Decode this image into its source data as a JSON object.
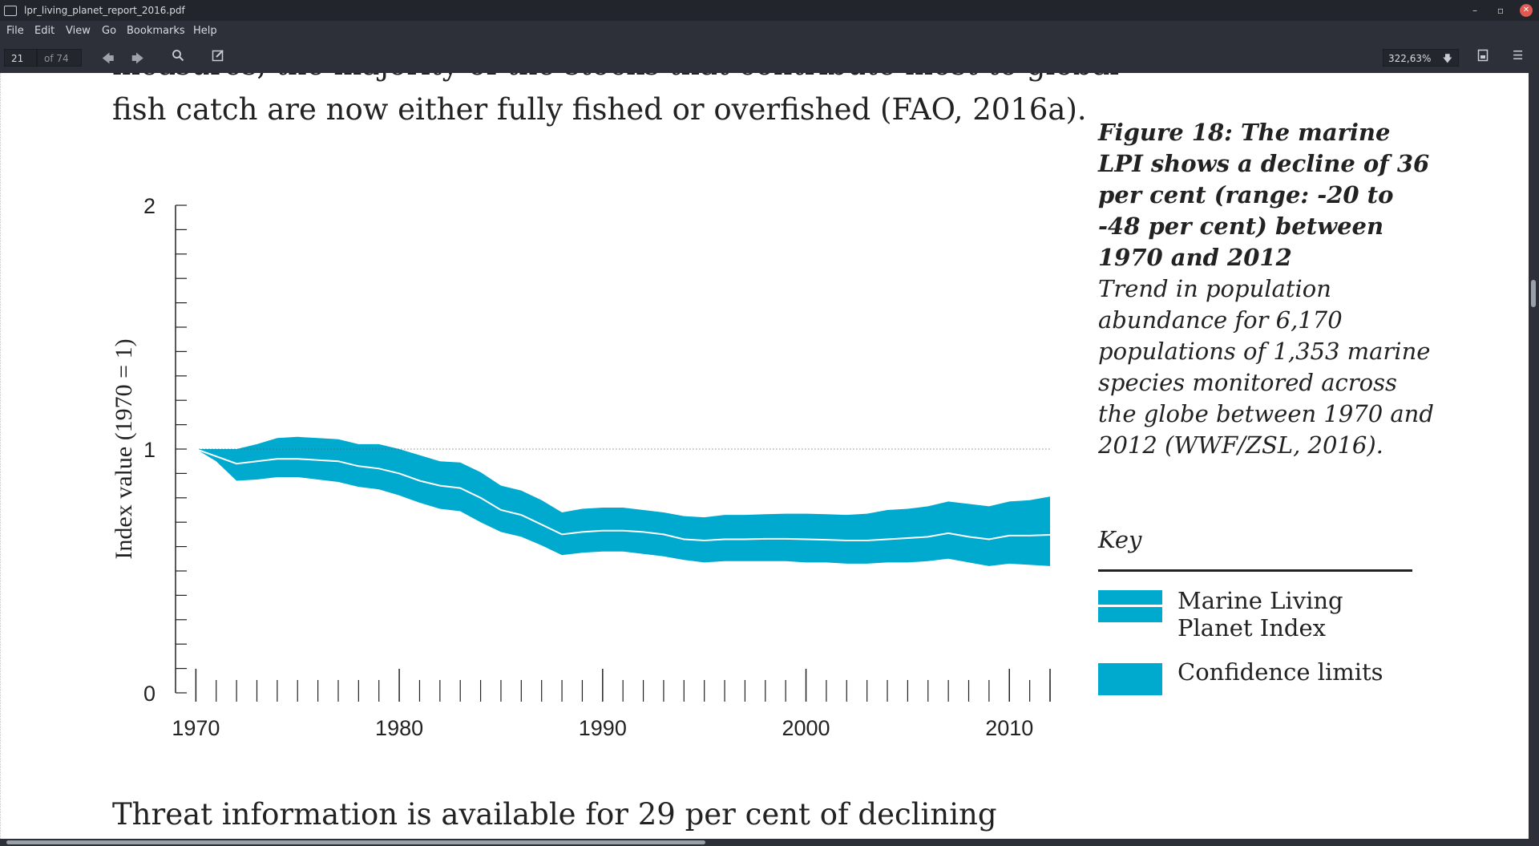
{
  "window": {
    "title": "lpr_living_planet_report_2016.pdf",
    "minimize": "–",
    "restore": "▫",
    "close": "✕"
  },
  "menu": [
    "File",
    "Edit",
    "View",
    "Go",
    "Bookmarks",
    "Help"
  ],
  "toolbar": {
    "page_current": "21",
    "page_total": "of 74",
    "zoom": "322,63%"
  },
  "document": {
    "top_partial_line": "measures, the majority of the stocks that contribute most to global",
    "top_line": "fish catch are now either fully fished or overfished (FAO, 2016a).",
    "bottom_line": "Threat information is available for 29 per cent of declining"
  },
  "caption": {
    "title": "Figure 18: The marine LPI shows a decline of 36 per cent (range: -20 to -48 per cent) between 1970 and 2012",
    "body": "Trend in population abundance for 6,170 populations of 1,353 marine species monitored across the globe between 1970 and 2012 (WWF/ZSL, 2016)."
  },
  "legend": {
    "heading": "Key",
    "items": [
      {
        "label": "Marine Living Planet Index",
        "swatch": "band-with-line"
      },
      {
        "label": "Confidence limits",
        "swatch": "solid-band"
      }
    ]
  },
  "colors": {
    "band": "#00a9ce",
    "index_line": "#ffffff",
    "axis": "#222222",
    "baseline": "#555555"
  },
  "chart_data": {
    "type": "area",
    "ylabel": "Index value (1970 = 1)",
    "xlabel": "",
    "ylim": [
      0,
      2
    ],
    "xlim": [
      1969,
      2012
    ],
    "yticks": [
      "0",
      "1",
      "2"
    ],
    "xticks": [
      "1970",
      "1980",
      "1990",
      "2000",
      "2010"
    ],
    "reference_line_y": 1,
    "x": [
      1970,
      1971,
      1972,
      1973,
      1974,
      1975,
      1976,
      1977,
      1978,
      1979,
      1980,
      1981,
      1982,
      1983,
      1984,
      1985,
      1986,
      1987,
      1988,
      1989,
      1990,
      1991,
      1992,
      1993,
      1994,
      1995,
      1996,
      1997,
      1998,
      1999,
      2000,
      2001,
      2002,
      2003,
      2004,
      2005,
      2006,
      2007,
      2008,
      2009,
      2010,
      2011,
      2012
    ],
    "series": [
      {
        "name": "Marine Living Planet Index",
        "values": [
          1.0,
          0.97,
          0.94,
          0.95,
          0.96,
          0.96,
          0.955,
          0.95,
          0.93,
          0.92,
          0.9,
          0.87,
          0.85,
          0.84,
          0.8,
          0.75,
          0.73,
          0.69,
          0.65,
          0.66,
          0.665,
          0.665,
          0.66,
          0.65,
          0.63,
          0.625,
          0.63,
          0.63,
          0.632,
          0.632,
          0.63,
          0.628,
          0.625,
          0.625,
          0.63,
          0.635,
          0.64,
          0.655,
          0.64,
          0.63,
          0.645,
          0.645,
          0.648
        ]
      },
      {
        "name": "Confidence limits (upper)",
        "values": [
          1.0,
          1.0,
          1.0,
          1.02,
          1.045,
          1.05,
          1.045,
          1.04,
          1.02,
          1.02,
          1.0,
          0.975,
          0.95,
          0.945,
          0.905,
          0.85,
          0.83,
          0.79,
          0.74,
          0.755,
          0.76,
          0.76,
          0.75,
          0.74,
          0.725,
          0.72,
          0.73,
          0.73,
          0.733,
          0.735,
          0.735,
          0.733,
          0.73,
          0.735,
          0.75,
          0.755,
          0.765,
          0.785,
          0.775,
          0.765,
          0.785,
          0.79,
          0.805
        ]
      },
      {
        "name": "Confidence limits (lower)",
        "values": [
          1.0,
          0.95,
          0.87,
          0.875,
          0.885,
          0.885,
          0.875,
          0.865,
          0.845,
          0.835,
          0.81,
          0.78,
          0.755,
          0.745,
          0.7,
          0.66,
          0.64,
          0.605,
          0.565,
          0.575,
          0.58,
          0.58,
          0.57,
          0.56,
          0.545,
          0.535,
          0.54,
          0.54,
          0.54,
          0.54,
          0.535,
          0.535,
          0.53,
          0.53,
          0.535,
          0.535,
          0.54,
          0.55,
          0.535,
          0.52,
          0.53,
          0.525,
          0.52
        ]
      }
    ]
  }
}
